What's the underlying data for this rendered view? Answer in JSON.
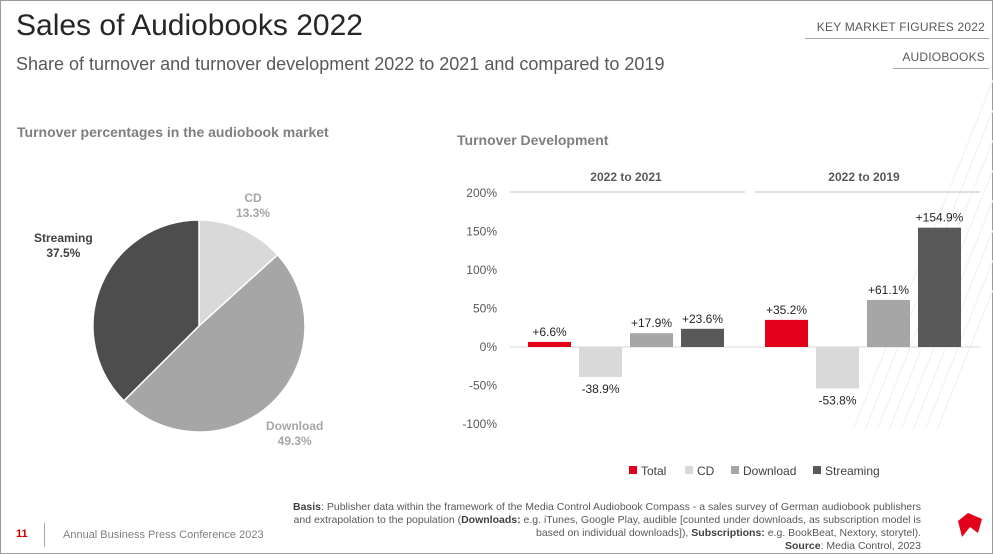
{
  "page": {
    "title": "Sales of Audiobooks 2022",
    "subtitle": "Share of turnover and turnover development 2022 to 2021 and compared to 2019",
    "tag_primary": "KEY MARKET FIGURES 2022",
    "tag_secondary": "AUDIOBOOKS",
    "page_number": "11",
    "footer_text": "Annual Business Press Conference 2023",
    "basis": {
      "label": "Basis",
      "text1": ": Publisher data within the framework of the Media Control Audiobook Compass - a sales survey of German audiobook publishers and extrapolation to the population (",
      "downloads_label": "Downloads:",
      "text2": " e.g. iTunes, Google Play, audible [counted under downloads, as subscription model is based on individual downloads]), ",
      "subscriptions_label": "Subscriptions:",
      "text3": " e.g. BookBeat, Nextory, storytel).",
      "source_label": "Source",
      "source_text": ": Media Control, 2023"
    }
  },
  "colors": {
    "total": "#e2001a",
    "cd": "#d9d9d9",
    "download": "#a6a6a6",
    "streaming": "#595959",
    "pie_cd": "#d9d9d9",
    "pie_download": "#a6a6a6",
    "pie_streaming": "#4d4d4d",
    "accent": "#c00000"
  },
  "chart_data": [
    {
      "type": "pie",
      "title": "Turnover percentages in the audiobook market",
      "slices": [
        {
          "name": "CD",
          "value": 13.3,
          "label": "13.3%"
        },
        {
          "name": "Download",
          "value": 49.3,
          "label": "49.3%"
        },
        {
          "name": "Streaming",
          "value": 37.5,
          "label": "37.5%"
        }
      ]
    },
    {
      "type": "bar",
      "title": "Turnover Development",
      "categories": [
        "2022 to 2021",
        "2022 to 2019"
      ],
      "series": [
        {
          "name": "Total",
          "values": [
            6.6,
            35.2
          ],
          "labels": [
            "+6.6%",
            "+35.2%"
          ]
        },
        {
          "name": "CD",
          "values": [
            -38.9,
            -53.8
          ],
          "labels": [
            "-38.9%",
            "-53.8%"
          ]
        },
        {
          "name": "Download",
          "values": [
            17.9,
            61.1
          ],
          "labels": [
            "+17.9%",
            "+61.1%"
          ]
        },
        {
          "name": "Streaming",
          "values": [
            23.6,
            154.9
          ],
          "labels": [
            "+23.6%",
            "+154.9%"
          ]
        }
      ],
      "ylim": [
        -100,
        200
      ],
      "yticks": [
        -100,
        -50,
        0,
        50,
        100,
        150,
        200
      ],
      "ytick_labels": [
        "-100%",
        "-50%",
        "0%",
        "50%",
        "100%",
        "150%",
        "200%"
      ],
      "grid": false,
      "legend": "bottom"
    }
  ]
}
